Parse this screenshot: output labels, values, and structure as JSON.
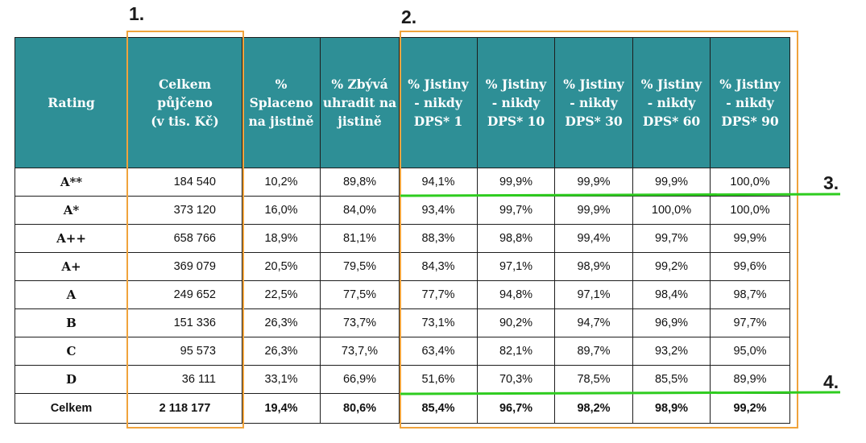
{
  "table": {
    "headers": [
      "Rating",
      "Celkem\npůjčeno\n(v tis. Kč)",
      "%\nSplaceno\nna jistině",
      "%  Zbývá\nuhradit na\njistině",
      "% Jistiny\n- nikdy\nDPS* 1",
      "% Jistiny\n- nikdy\nDPS* 10",
      "% Jistiny\n- nikdy\nDPS* 30",
      "% Jistiny\n- nikdy\nDPS* 60",
      "% Jistiny\n- nikdy\nDPS* 90"
    ],
    "rows": [
      [
        "A**",
        "184 540",
        "10,2%",
        "89,8%",
        "94,1%",
        "99,9%",
        "99,9%",
        "99,9%",
        "100,0%"
      ],
      [
        "A*",
        "373 120",
        "16,0%",
        "84,0%",
        "93,4%",
        "99,7%",
        "99,9%",
        "100,0%",
        "100,0%"
      ],
      [
        "A++",
        "658 766",
        "18,9%",
        "81,1%",
        "88,3%",
        "98,8%",
        "99,4%",
        "99,7%",
        "99,9%"
      ],
      [
        "A+",
        "369 079",
        "20,5%",
        "79,5%",
        "84,3%",
        "97,1%",
        "98,9%",
        "99,2%",
        "99,6%"
      ],
      [
        "A",
        "249 652",
        "22,5%",
        "77,5%",
        "77,7%",
        "94,8%",
        "97,1%",
        "98,4%",
        "98,7%"
      ],
      [
        "B",
        "151 336",
        "26,3%",
        "73,7%",
        "73,1%",
        "90,2%",
        "94,7%",
        "96,9%",
        "97,7%"
      ],
      [
        "C",
        "95 573",
        "26,3%",
        "73,7,%",
        "63,4%",
        "82,1%",
        "89,7%",
        "93,2%",
        "95,0%"
      ],
      [
        "D",
        "36 111",
        "33,1%",
        "66,9%",
        "51,6%",
        "70,3%",
        "78,5%",
        "85,5%",
        "89,9%"
      ]
    ],
    "total": [
      "Celkem",
      "2 118 177",
      "19,4%",
      "80,6%",
      "85,4%",
      "96,7%",
      "98,2%",
      "98,9%",
      "99,2%"
    ]
  },
  "annotations": {
    "labels": [
      "1.",
      "2.",
      "3.",
      "4."
    ],
    "box_color": "#f0a33c",
    "line_color": "#2ecc1f"
  },
  "colors": {
    "header_bg": "#2e8f96",
    "header_text": "#ffffff",
    "grid": "#1d1d1d"
  }
}
